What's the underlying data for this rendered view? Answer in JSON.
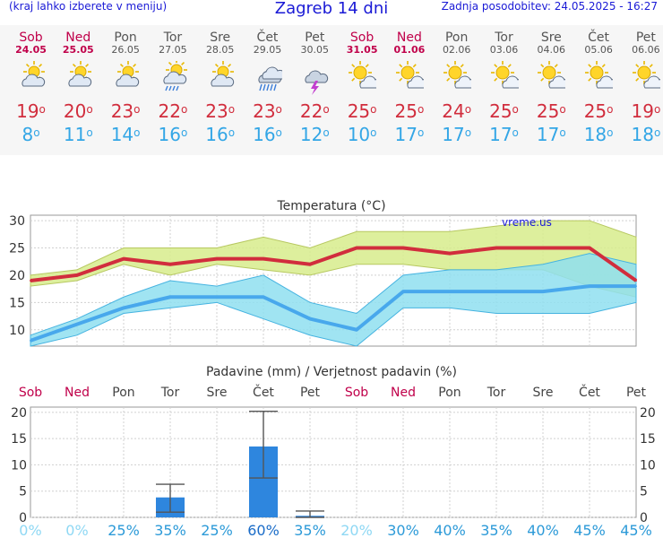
{
  "header": {
    "menu_hint": "(kraj lahko izberete v meniju)",
    "title": "Zagreb 14 dni",
    "updated": "Zadnja posodobitev: 24.05.2025 - 16:27"
  },
  "days": [
    {
      "name": "Sob",
      "date": "24.05",
      "weekend": true,
      "icon": "partly-cloudy-icon",
      "max": "19",
      "min": "8"
    },
    {
      "name": "Ned",
      "date": "25.05",
      "weekend": true,
      "icon": "partly-cloudy-icon",
      "max": "20",
      "min": "11"
    },
    {
      "name": "Pon",
      "date": "26.05",
      "weekend": false,
      "icon": "partly-cloudy-icon",
      "max": "23",
      "min": "14"
    },
    {
      "name": "Tor",
      "date": "27.05",
      "weekend": false,
      "icon": "sun-cloud-rain-icon",
      "max": "22",
      "min": "16"
    },
    {
      "name": "Sre",
      "date": "28.05",
      "weekend": false,
      "icon": "partly-cloudy-icon",
      "max": "23",
      "min": "16"
    },
    {
      "name": "Čet",
      "date": "29.05",
      "weekend": false,
      "icon": "cloud-rain-icon",
      "max": "23",
      "min": "16"
    },
    {
      "name": "Pet",
      "date": "30.05",
      "weekend": false,
      "icon": "thunderstorm-icon",
      "max": "22",
      "min": "12"
    },
    {
      "name": "Sob",
      "date": "31.05",
      "weekend": true,
      "icon": "mostly-sunny-icon",
      "max": "25",
      "min": "10"
    },
    {
      "name": "Ned",
      "date": "01.06",
      "weekend": true,
      "icon": "mostly-sunny-icon",
      "max": "25",
      "min": "17"
    },
    {
      "name": "Pon",
      "date": "02.06",
      "weekend": false,
      "icon": "mostly-sunny-icon",
      "max": "24",
      "min": "17"
    },
    {
      "name": "Tor",
      "date": "03.06",
      "weekend": false,
      "icon": "mostly-sunny-icon",
      "max": "25",
      "min": "17"
    },
    {
      "name": "Sre",
      "date": "04.06",
      "weekend": false,
      "icon": "mostly-sunny-icon",
      "max": "25",
      "min": "17"
    },
    {
      "name": "Čet",
      "date": "05.06",
      "weekend": false,
      "icon": "mostly-sunny-icon",
      "max": "25",
      "min": "18"
    },
    {
      "name": "Pet",
      "date": "06.06",
      "weekend": false,
      "icon": "mostly-sunny-icon",
      "max": "19",
      "min": "18"
    }
  ],
  "colors": {
    "title_blue": "#1a1ad6",
    "weekend": "#c0004a",
    "weekday": "#555555",
    "max_line": "#d12d3d",
    "max_band": "#d7ec8c",
    "min_line": "#48a8ec",
    "min_band": "#8fdff0",
    "bar": "#2e86de",
    "prob_low": "#8fd8f4",
    "prob_mid": "#2c9ad8",
    "prob_high": "#1a6cc8"
  },
  "chart_data": [
    {
      "type": "line",
      "title": "Temperatura (°C)",
      "watermark": "vreme.us",
      "x": [
        "24.05",
        "25.05",
        "26.05",
        "27.05",
        "28.05",
        "29.05",
        "30.05",
        "31.05",
        "01.06",
        "02.06",
        "03.06",
        "04.06",
        "05.06",
        "06.06"
      ],
      "ylim": [
        7,
        31
      ],
      "yticks": [
        10,
        15,
        20,
        25,
        30
      ],
      "grid": true,
      "series": [
        {
          "name": "max",
          "values": [
            19,
            20,
            23,
            22,
            23,
            23,
            22,
            25,
            25,
            24,
            25,
            25,
            25,
            19
          ],
          "band_high": [
            20,
            21,
            25,
            25,
            25,
            27,
            25,
            28,
            28,
            28,
            29,
            30,
            30,
            27
          ],
          "band_low": [
            18,
            19,
            22,
            20,
            22,
            21,
            20,
            22,
            22,
            21,
            21,
            21,
            18,
            16
          ]
        },
        {
          "name": "min",
          "values": [
            8,
            11,
            14,
            16,
            16,
            16,
            12,
            10,
            17,
            17,
            17,
            17,
            18,
            18
          ],
          "band_high": [
            9,
            12,
            16,
            19,
            18,
            20,
            15,
            13,
            20,
            21,
            21,
            22,
            24,
            22
          ],
          "band_low": [
            7,
            9,
            13,
            14,
            15,
            12,
            9,
            7,
            14,
            14,
            13,
            13,
            13,
            15
          ]
        }
      ]
    },
    {
      "type": "bar",
      "title": "Padavine (mm) / Verjetnost padavin (%)",
      "categories": [
        "Sob",
        "Ned",
        "Pon",
        "Tor",
        "Sre",
        "Čet",
        "Pet",
        "Sob",
        "Ned",
        "Pon",
        "Tor",
        "Sre",
        "Čet",
        "Pet"
      ],
      "weekend": [
        true,
        true,
        false,
        false,
        false,
        false,
        false,
        true,
        true,
        false,
        false,
        false,
        false,
        false
      ],
      "ylim": [
        0,
        21
      ],
      "yticks": [
        0,
        5,
        10,
        15,
        20
      ],
      "values": [
        0,
        0,
        0,
        3.8,
        0,
        13.5,
        0.3,
        0,
        0,
        0,
        0,
        0,
        0,
        0
      ],
      "err_low": [
        null,
        null,
        null,
        1,
        null,
        7.5,
        0,
        null,
        null,
        null,
        null,
        null,
        null,
        null
      ],
      "err_high": [
        null,
        null,
        null,
        6.3,
        null,
        20.2,
        1.2,
        null,
        null,
        null,
        null,
        null,
        null,
        null
      ],
      "probability": [
        "0%",
        "0%",
        "25%",
        "35%",
        "25%",
        "60%",
        "35%",
        "20%",
        "30%",
        "40%",
        "35%",
        "40%",
        "45%",
        "45%"
      ]
    }
  ]
}
